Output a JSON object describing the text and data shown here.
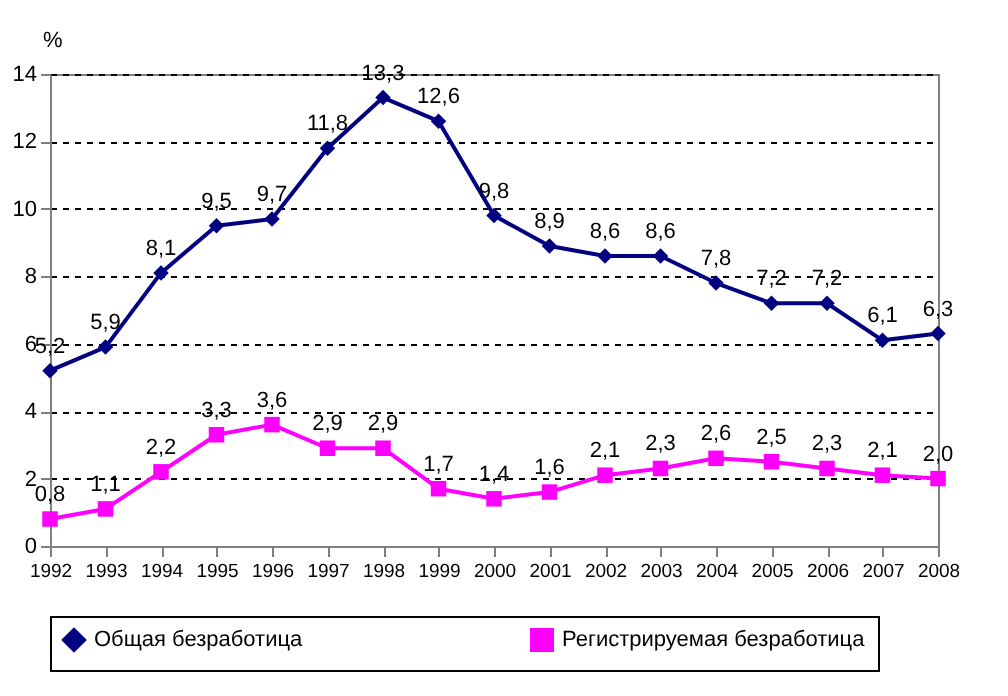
{
  "chart_data": {
    "type": "line",
    "ylabel": "%",
    "x": [
      1992,
      1993,
      1994,
      1995,
      1996,
      1997,
      1998,
      1999,
      2000,
      2001,
      2002,
      2003,
      2004,
      2005,
      2006,
      2007,
      2008
    ],
    "xlim": [
      1992,
      2008
    ],
    "xticks": [
      1992,
      1993,
      1994,
      1995,
      1996,
      1997,
      1998,
      1999,
      2000,
      2001,
      2002,
      2003,
      2004,
      2005,
      2006,
      2007,
      2008
    ],
    "ylim": [
      0,
      14
    ],
    "yticks": [
      0,
      2,
      4,
      6,
      8,
      10,
      12,
      14
    ],
    "grid": "y",
    "legend": "bottom",
    "series": [
      {
        "name": "Общая безработица",
        "color": "#000080",
        "marker": "diamond",
        "values": [
          5.2,
          5.9,
          8.1,
          9.5,
          9.7,
          11.8,
          13.3,
          12.6,
          9.8,
          8.9,
          8.6,
          8.6,
          7.8,
          7.2,
          7.2,
          6.1,
          6.3
        ],
        "value_labels": [
          "5,2",
          "5,9",
          "8,1",
          "9,5",
          "9,7",
          "11,8",
          "13,3",
          "12,6",
          "9,8",
          "8,9",
          "8,6",
          "8,6",
          "7,8",
          "7,2",
          "7,2",
          "6,1",
          "6,3"
        ]
      },
      {
        "name": "Регистрируемая безработица",
        "color": "#ff00ff",
        "marker": "square",
        "values": [
          0.8,
          1.1,
          2.2,
          3.3,
          3.6,
          2.9,
          2.9,
          1.7,
          1.4,
          1.6,
          2.1,
          2.3,
          2.6,
          2.5,
          2.3,
          2.1,
          2.0
        ],
        "value_labels": [
          "0,8",
          "1,1",
          "2,2",
          "3,3",
          "3,6",
          "2,9",
          "2,9",
          "1,7",
          "1,4",
          "1,6",
          "2,1",
          "2,3",
          "2,6",
          "2,5",
          "2,3",
          "2,1",
          "2,0"
        ]
      }
    ]
  }
}
